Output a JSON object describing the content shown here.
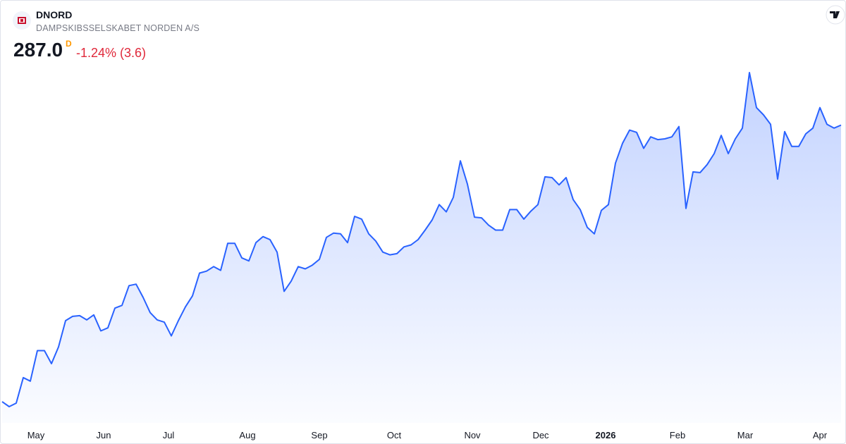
{
  "header": {
    "symbol": "DNORD",
    "name": "DAMPSKIBSSELSKABET NORDEN A/S",
    "price": "287.0",
    "badge": "D",
    "change": "-1.24% (3.6)"
  },
  "chart_data": {
    "type": "area",
    "color": "#2962ff",
    "values": [
      176.4,
      174.4,
      175.8,
      186.0,
      184.6,
      196.8,
      196.8,
      191.6,
      198.3,
      208.8,
      210.5,
      210.8,
      209.1,
      211.1,
      204.7,
      205.9,
      213.8,
      214.9,
      222.8,
      223.4,
      218.1,
      212.0,
      209.1,
      208.2,
      202.7,
      208.8,
      214.3,
      218.7,
      227.8,
      228.6,
      230.4,
      228.9,
      239.7,
      239.7,
      233.9,
      232.7,
      240.0,
      242.4,
      241.2,
      236.2,
      220.5,
      224.6,
      230.4,
      229.5,
      231.0,
      233.3,
      242.1,
      243.8,
      243.5,
      240.0,
      250.5,
      249.4,
      243.5,
      240.6,
      236.2,
      235.1,
      235.6,
      238.3,
      239.1,
      241.2,
      245.0,
      249.1,
      255.2,
      252.3,
      258.1,
      272.7,
      263.4,
      250.2,
      249.9,
      247.0,
      245.0,
      245.0,
      253.2,
      253.2,
      249.4,
      252.6,
      255.2,
      266.3,
      266.0,
      263.1,
      266.0,
      257.2,
      253.2,
      246.1,
      243.5,
      252.9,
      255.2,
      271.8,
      279.7,
      285.0,
      284.1,
      277.7,
      282.3,
      281.2,
      281.5,
      282.3,
      286.4,
      253.7,
      268.3,
      268.0,
      271.2,
      275.6,
      282.9,
      275.6,
      281.5,
      285.8,
      308.0,
      294.0,
      291.1,
      287.3,
      265.4,
      284.4,
      278.5,
      278.5,
      283.5,
      285.8,
      294.0,
      287.3,
      285.8,
      287.0
    ],
    "xticks": [
      {
        "value": 4.8,
        "label": "May"
      },
      {
        "value": 14.4,
        "label": "Jun"
      },
      {
        "value": 23.6,
        "label": "Jul"
      },
      {
        "value": 34.8,
        "label": "Aug"
      },
      {
        "value": 45,
        "label": "Sep"
      },
      {
        "value": 55.6,
        "label": "Oct"
      },
      {
        "value": 66.7,
        "label": "Nov"
      },
      {
        "value": 76.4,
        "label": "Dec"
      },
      {
        "value": 85.6,
        "label": "2026"
      },
      {
        "value": 95.8,
        "label": "Feb"
      },
      {
        "value": 105.4,
        "label": "Mar"
      },
      {
        "value": 116,
        "label": "Apr"
      }
    ]
  }
}
